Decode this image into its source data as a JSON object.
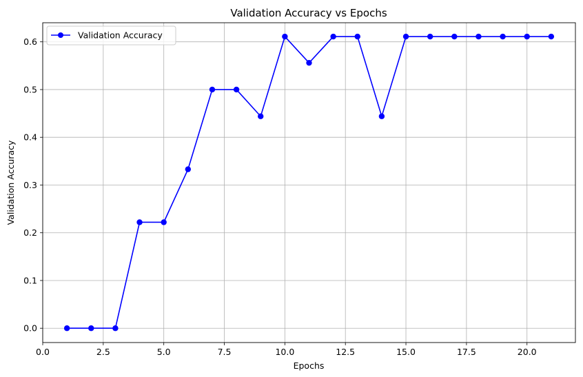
{
  "chart_data": {
    "type": "line",
    "title": "Validation Accuracy vs Epochs",
    "xlabel": "Epochs",
    "ylabel": "Validation Accuracy",
    "xlim": [
      0,
      22
    ],
    "ylim": [
      -0.03,
      0.64
    ],
    "xticks": [
      0.0,
      2.5,
      5.0,
      7.5,
      10.0,
      12.5,
      15.0,
      17.5,
      20.0
    ],
    "xtick_labels": [
      "0.0",
      "2.5",
      "5.0",
      "7.5",
      "10.0",
      "12.5",
      "15.0",
      "17.5",
      "20.0"
    ],
    "yticks": [
      0.0,
      0.1,
      0.2,
      0.3,
      0.4,
      0.5,
      0.6
    ],
    "ytick_labels": [
      "0.0",
      "0.1",
      "0.2",
      "0.3",
      "0.4",
      "0.5",
      "0.6"
    ],
    "grid": true,
    "legend_position": "top-left",
    "series": [
      {
        "name": "Validation Accuracy",
        "color": "#0000ff",
        "marker": "circle",
        "x": [
          1,
          2,
          3,
          4,
          5,
          6,
          7,
          8,
          9,
          10,
          11,
          12,
          13,
          14,
          15,
          16,
          17,
          18,
          19,
          20,
          21
        ],
        "y": [
          0.0,
          0.0,
          0.0,
          0.222,
          0.222,
          0.333,
          0.5,
          0.5,
          0.444,
          0.611,
          0.556,
          0.611,
          0.611,
          0.444,
          0.611,
          0.611,
          0.611,
          0.611,
          0.611,
          0.611,
          0.611
        ]
      }
    ]
  }
}
